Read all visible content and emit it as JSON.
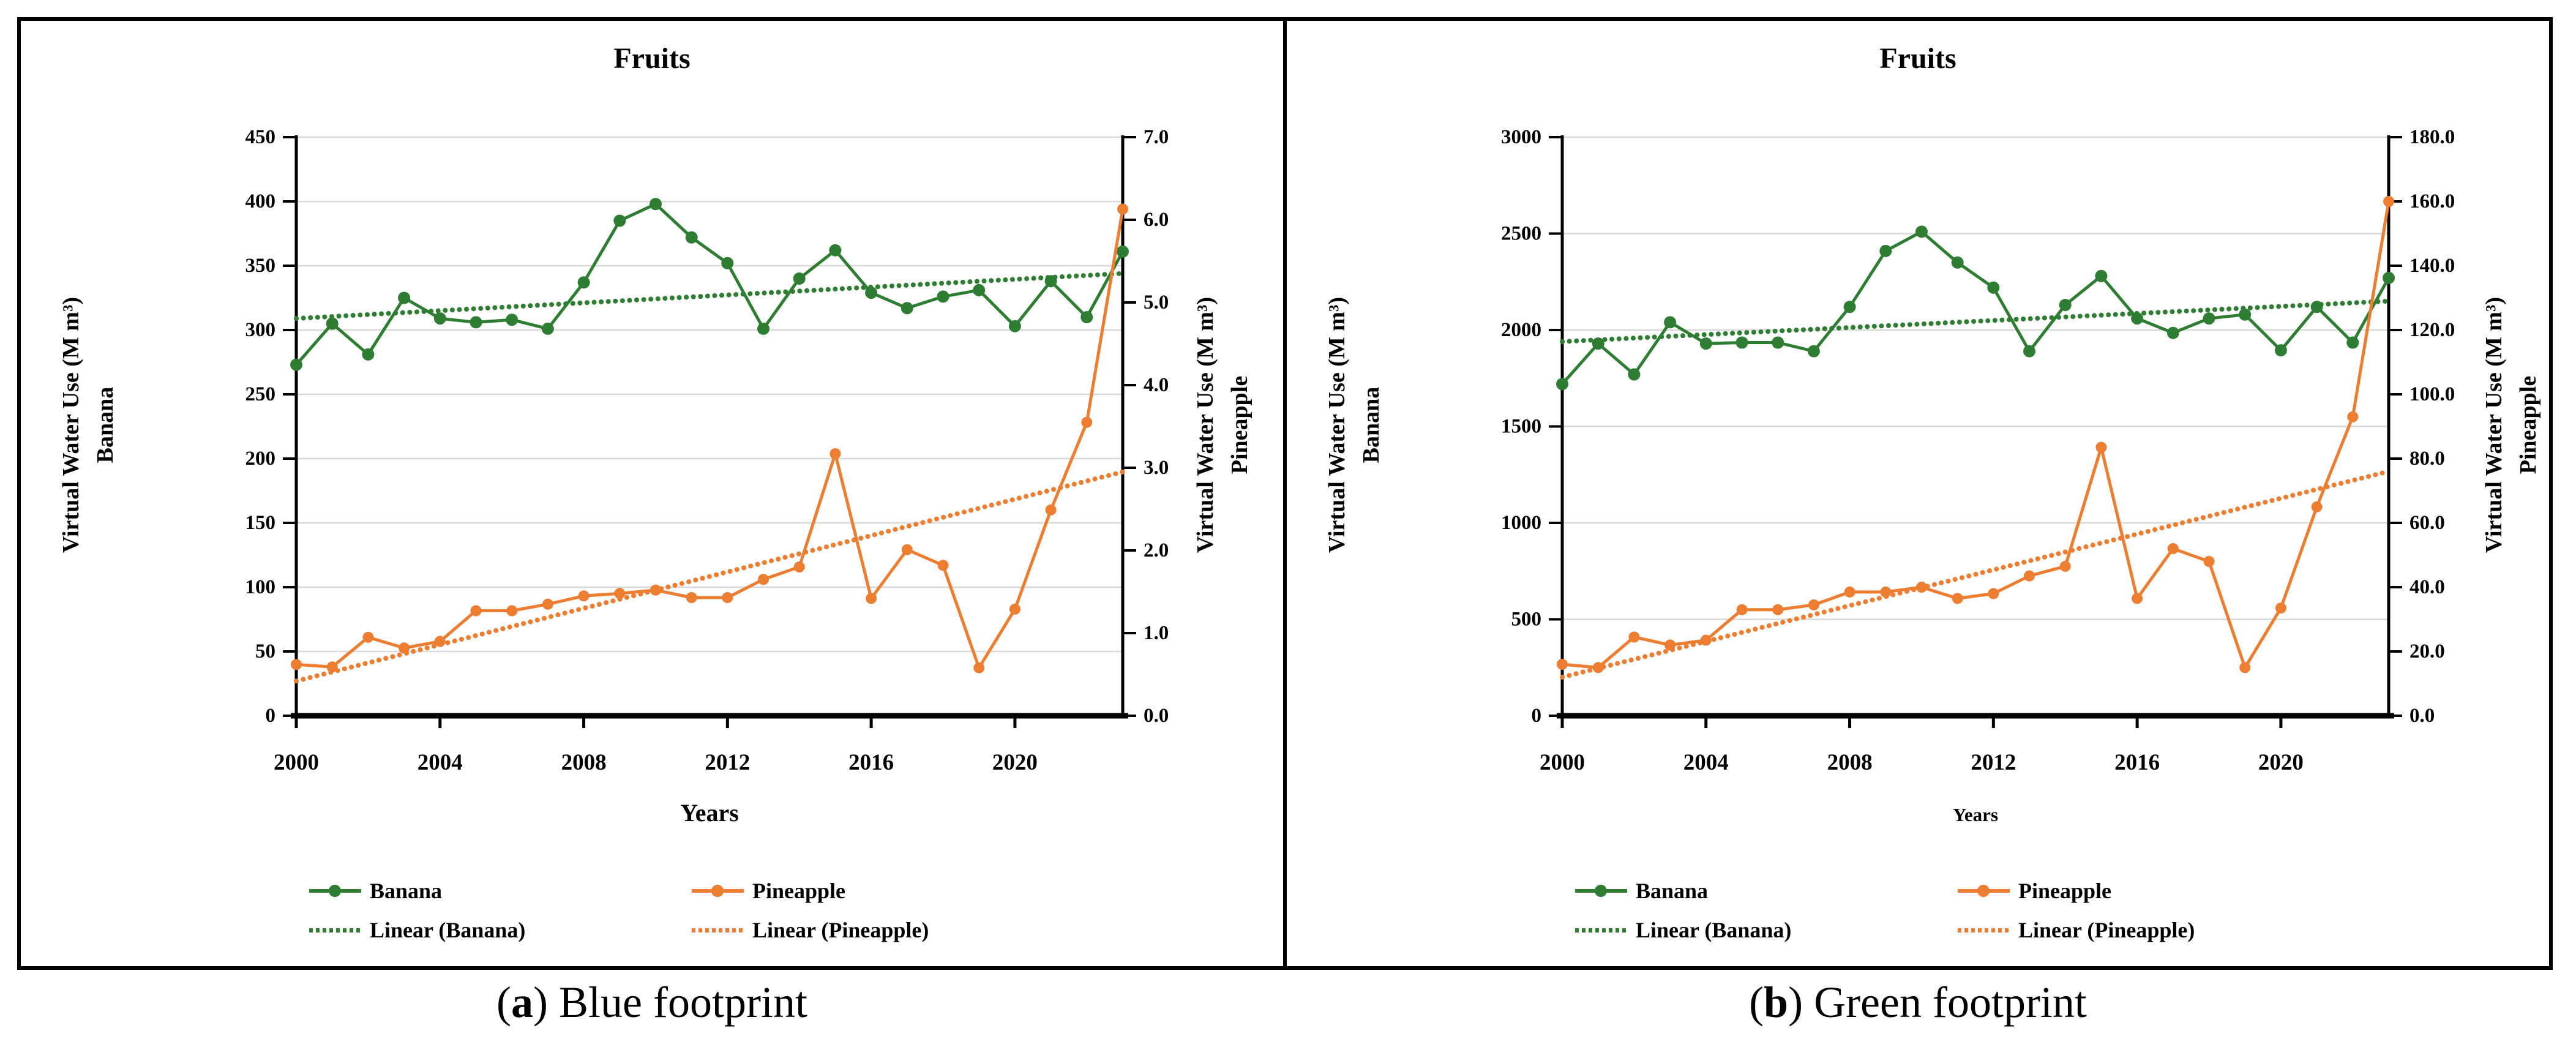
{
  "colors": {
    "banana": "#2e7d33",
    "pineapple": "#ed7d31",
    "grid": "#d9d9d9",
    "axis": "#000000"
  },
  "legend": {
    "items": [
      {
        "label": "Banana",
        "color": "banana",
        "style": "solid"
      },
      {
        "label": "Pineapple",
        "color": "pineapple",
        "style": "solid"
      },
      {
        "label": "Linear (Banana)",
        "color": "banana",
        "style": "dotted"
      },
      {
        "label": "Linear (Pineapple)",
        "color": "pineapple",
        "style": "dotted"
      }
    ]
  },
  "captions": [
    {
      "open": "(",
      "letter": "a",
      "close": ")",
      "label": "Blue footprint"
    },
    {
      "open": "(",
      "letter": "b",
      "close": ")",
      "label": "Green footprint"
    }
  ],
  "chart_data": [
    {
      "type": "line",
      "id": "a",
      "title": "Fruits",
      "x_label": "Years",
      "years_start": 2000,
      "years_end": 2023,
      "x_tick_labels": [
        "2000",
        "2004",
        "2008",
        "2012",
        "2016",
        "2020"
      ],
      "left_axis": {
        "title": "Virtual Water Use (M m³)",
        "series_label": "Banana",
        "min": 0,
        "max": 450,
        "tick_labels": [
          "450",
          "400",
          "350",
          "300",
          "250",
          "200",
          "150",
          "100",
          "50",
          "0"
        ]
      },
      "right_axis": {
        "title": "Virtual Water Use (M m³)",
        "series_label": "Pineapple",
        "min": 0,
        "max": 7,
        "tick_labels": [
          "7.0",
          "6.0",
          "5.0",
          "4.0",
          "3.0",
          "2.0",
          "1.0",
          "0.0"
        ]
      },
      "series": [
        {
          "name": "Banana",
          "axis": "left",
          "color": "banana",
          "values": [
            273,
            305,
            281,
            325,
            309,
            306,
            308,
            301,
            337,
            385,
            398,
            372,
            352,
            301,
            340,
            362,
            329,
            317,
            326,
            331,
            303,
            338,
            310,
            361
          ]
        },
        {
          "name": "Pineapple",
          "axis": "right",
          "color": "pineapple",
          "values": [
            0.62,
            0.59,
            0.95,
            0.82,
            0.9,
            1.27,
            1.27,
            1.35,
            1.45,
            1.48,
            1.52,
            1.43,
            1.43,
            1.65,
            1.8,
            3.17,
            1.42,
            2.01,
            1.82,
            0.58,
            1.29,
            2.49,
            3.55,
            6.13
          ]
        }
      ],
      "trendlines": [
        {
          "name": "Linear (Banana)",
          "axis": "left",
          "color": "banana",
          "start": 309,
          "end": 344
        },
        {
          "name": "Linear (Pineapple)",
          "axis": "right",
          "color": "pineapple",
          "start": 0.42,
          "end": 2.95
        }
      ]
    },
    {
      "type": "line",
      "id": "b",
      "title": "Fruits",
      "x_label": "Years",
      "years_start": 2000,
      "years_end": 2023,
      "x_tick_labels": [
        "2000",
        "2004",
        "2008",
        "2012",
        "2016",
        "2020"
      ],
      "left_axis": {
        "title": "Virtual Water Use (M m³)",
        "series_label": "Banana",
        "min": 0,
        "max": 3000,
        "tick_labels": [
          "3000",
          "2500",
          "2000",
          "1500",
          "1000",
          "500",
          "0"
        ]
      },
      "right_axis": {
        "title": "Virtual Water Use (M m³)",
        "series_label": "Pineapple",
        "min": 0,
        "max": 180,
        "tick_labels": [
          "180.0",
          "160.0",
          "140.0",
          "120.0",
          "100.0",
          "80.0",
          "60.0",
          "40.0",
          "20.0",
          "0.0"
        ]
      },
      "series": [
        {
          "name": "Banana",
          "axis": "left",
          "color": "banana",
          "values": [
            1720,
            1930,
            1770,
            2040,
            1930,
            1935,
            1935,
            1890,
            2120,
            2410,
            2510,
            2350,
            2220,
            1890,
            2130,
            2280,
            2060,
            1985,
            2060,
            2080,
            1895,
            2120,
            1935,
            2270
          ]
        },
        {
          "name": "Pineapple",
          "axis": "right",
          "color": "pineapple",
          "values": [
            16,
            15,
            24.5,
            22,
            23.5,
            33,
            33,
            34.5,
            38.5,
            38.5,
            40,
            36.5,
            38,
            43.5,
            46.5,
            83.5,
            36.5,
            52,
            48,
            15,
            33.5,
            65,
            93,
            160
          ]
        }
      ],
      "trendlines": [
        {
          "name": "Linear (Banana)",
          "axis": "left",
          "color": "banana",
          "start": 1940,
          "end": 2150
        },
        {
          "name": "Linear (Pineapple)",
          "axis": "right",
          "color": "pineapple",
          "start": 12,
          "end": 76
        }
      ]
    }
  ]
}
